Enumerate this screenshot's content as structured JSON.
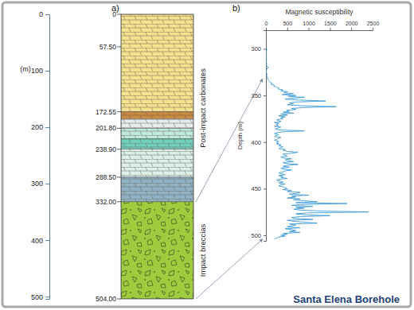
{
  "caption": "Santa Elena Borehole",
  "chart_data": [
    {
      "type": "column",
      "panel_label": "a)",
      "ylabel": "(m)",
      "ylim": [
        0,
        504
      ],
      "yticks": [
        0,
        100,
        200,
        300,
        400,
        500
      ],
      "depth_labels": [
        0,
        {
          "value": 57.5,
          "label": "57.50"
        },
        172.55,
        {
          "value": 201.8,
          "label": "201.80"
        },
        {
          "value": 238.9,
          "label": "238.90"
        },
        {
          "value": 288.5,
          "label": "288.50"
        },
        {
          "value": 332,
          "label": "332.00"
        },
        {
          "value": 504,
          "label": "504.00"
        }
      ],
      "layers": [
        {
          "top": 0,
          "bottom": 172.55,
          "color": "#f5e28f"
        },
        {
          "top": 172.55,
          "bottom": 185,
          "color": "#c98a3f"
        },
        {
          "top": 185,
          "bottom": 201.8,
          "color": "#e6ecee"
        },
        {
          "top": 201.8,
          "bottom": 220,
          "color": "#bfe8df"
        },
        {
          "top": 220,
          "bottom": 238.9,
          "color": "#6fd0bf"
        },
        {
          "top": 238.9,
          "bottom": 288.5,
          "color": "#dcefea"
        },
        {
          "top": 288.5,
          "bottom": 332,
          "color": "#8fb2c6"
        },
        {
          "top": 332,
          "bottom": 504,
          "color": "#9fcb3f"
        }
      ],
      "units": [
        {
          "name": "Post-impact carbonates",
          "top": 0,
          "bottom": 332
        },
        {
          "name": "Impact breccias",
          "top": 332,
          "bottom": 504
        }
      ]
    },
    {
      "type": "line",
      "panel_label": "b)",
      "title": "Magnetic susceptibility",
      "ylabel": "Depth (m)",
      "xlim": [
        0,
        2500
      ],
      "xticks": [
        0,
        500,
        1000,
        1500,
        2000,
        2500
      ],
      "ylim": [
        280,
        506
      ],
      "yticks": [
        300,
        350,
        400,
        450,
        500
      ],
      "series": [
        {
          "color": "#3d9ad6",
          "y": [
            300,
            301,
            302,
            303,
            304,
            305,
            306,
            307,
            308,
            309,
            310,
            311,
            312,
            313,
            314,
            315,
            316,
            317,
            318,
            319,
            320,
            321,
            322,
            323,
            324,
            325,
            326,
            327,
            328,
            329,
            330,
            331,
            332,
            333,
            334,
            335,
            336,
            337,
            338,
            339,
            340,
            341,
            342,
            343,
            344,
            345,
            346,
            347,
            348,
            349,
            350,
            351,
            352,
            353,
            354,
            355,
            356,
            357,
            358,
            359,
            360,
            361,
            362,
            363,
            364,
            365,
            366,
            367,
            368,
            369,
            370,
            371,
            372,
            373,
            374,
            375,
            376,
            377,
            378,
            379,
            380,
            381,
            382,
            383,
            384,
            385,
            386,
            387,
            388,
            389,
            390,
            391,
            392,
            393,
            394,
            395,
            396,
            397,
            398,
            399,
            400,
            401,
            402,
            403,
            404,
            405,
            406,
            407,
            408,
            409,
            410,
            411,
            412,
            413,
            414,
            415,
            416,
            417,
            418,
            419,
            420,
            421,
            422,
            423,
            424,
            425,
            426,
            427,
            428,
            429,
            430,
            431,
            432,
            433,
            434,
            435,
            436,
            437,
            438,
            439,
            440,
            441,
            442,
            443,
            444,
            445,
            446,
            447,
            448,
            449,
            450,
            451,
            452,
            453,
            454,
            455,
            456,
            457,
            458,
            459,
            460,
            461,
            462,
            463,
            464,
            465,
            466,
            467,
            468,
            469,
            470,
            471,
            472,
            473,
            474,
            475,
            476,
            477,
            478,
            479,
            480,
            481,
            482,
            483,
            484,
            485,
            486,
            487,
            488,
            489,
            490,
            491,
            492,
            493,
            494,
            495,
            496,
            497,
            498,
            499,
            500,
            501,
            502,
            503,
            504
          ],
          "x": [
            30,
            20,
            15,
            10,
            10,
            5,
            5,
            10,
            5,
            5,
            10,
            15,
            10,
            5,
            5,
            10,
            20,
            15,
            10,
            40,
            60,
            30,
            20,
            15,
            10,
            10,
            15,
            20,
            25,
            20,
            30,
            40,
            35,
            50,
            60,
            80,
            100,
            150,
            120,
            200,
            180,
            250,
            300,
            280,
            400,
            350,
            500,
            420,
            650,
            380,
            700,
            520,
            900,
            600,
            450,
            800,
            1400,
            700,
            550,
            650,
            500,
            800,
            1650,
            900,
            600,
            700,
            480,
            550,
            400,
            650,
            350,
            500,
            300,
            450,
            350,
            400,
            250,
            300,
            350,
            200,
            300,
            250,
            300,
            200,
            350,
            280,
            220,
            300,
            900,
            400,
            250,
            200,
            300,
            250,
            200,
            350,
            300,
            250,
            200,
            300,
            250,
            300,
            250,
            350,
            300,
            400,
            350,
            300,
            450,
            400,
            500,
            750,
            600,
            400,
            450,
            500,
            350,
            400,
            600,
            450,
            500,
            650,
            400,
            450,
            750,
            500,
            400,
            550,
            350,
            400,
            600,
            450,
            400,
            300,
            350,
            450,
            300,
            400,
            350,
            500,
            300,
            250,
            350,
            400,
            300,
            450,
            350,
            300,
            400,
            450,
            500,
            400,
            600,
            500,
            800,
            700,
            550,
            1000,
            600,
            700,
            500,
            800,
            650,
            900,
            1200,
            700,
            1900,
            800,
            600,
            1100,
            700,
            900,
            650,
            800,
            1300,
            2400,
            1000,
            700,
            900,
            1500,
            800,
            600,
            700,
            1100,
            500,
            650,
            900,
            1200,
            550,
            700,
            600,
            500,
            800,
            450,
            600,
            700,
            550,
            800,
            400,
            500,
            350,
            450,
            300,
            250,
            200
          ]
        }
      ]
    }
  ]
}
